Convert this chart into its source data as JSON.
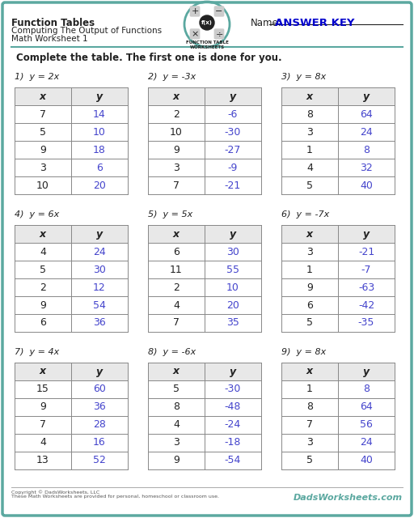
{
  "title": "Function Tables",
  "subtitle1": "Computing The Output of Functions",
  "subtitle2": "Math Worksheet 1",
  "name_label": "Name:",
  "answer_key": "ANSWER KEY",
  "instruction": "Complete the table. The first one is done for you.",
  "bg_color": "#ffffff",
  "border_color": "#5ba8a0",
  "header_bg": "#d0e8e4",
  "tables": [
    {
      "label": "1)  y = 2x",
      "x_vals": [
        7,
        5,
        9,
        3,
        10
      ],
      "y_vals": [
        "14",
        "10",
        "18",
        "6",
        "20"
      ]
    },
    {
      "label": "2)  y = -3x",
      "x_vals": [
        2,
        10,
        9,
        3,
        7
      ],
      "y_vals": [
        "-6",
        "-30",
        "-27",
        "-9",
        "-21"
      ]
    },
    {
      "label": "3)  y = 8x",
      "x_vals": [
        8,
        3,
        1,
        4,
        5
      ],
      "y_vals": [
        "64",
        "24",
        "8",
        "32",
        "40"
      ]
    },
    {
      "label": "4)  y = 6x",
      "x_vals": [
        4,
        5,
        2,
        9,
        6
      ],
      "y_vals": [
        "24",
        "30",
        "12",
        "54",
        "36"
      ]
    },
    {
      "label": "5)  y = 5x",
      "x_vals": [
        6,
        11,
        2,
        4,
        7
      ],
      "y_vals": [
        "30",
        "55",
        "10",
        "20",
        "35"
      ]
    },
    {
      "label": "6)  y = -7x",
      "x_vals": [
        3,
        1,
        9,
        6,
        5
      ],
      "y_vals": [
        "-21",
        "-7",
        "-63",
        "-42",
        "-35"
      ]
    },
    {
      "label": "7)  y = 4x",
      "x_vals": [
        15,
        9,
        7,
        4,
        13
      ],
      "y_vals": [
        "60",
        "36",
        "28",
        "16",
        "52"
      ]
    },
    {
      "label": "8)  y = -6x",
      "x_vals": [
        5,
        8,
        4,
        3,
        9
      ],
      "y_vals": [
        "-30",
        "-48",
        "-24",
        "-18",
        "-54"
      ]
    },
    {
      "label": "9)  y = 8x",
      "x_vals": [
        1,
        8,
        7,
        3,
        5
      ],
      "y_vals": [
        "8",
        "64",
        "56",
        "24",
        "40"
      ]
    }
  ],
  "footer_left": "Copyright © DadsWorksheets, LLC\nThese Math Worksheets are provided for personal, homeschool or classroom use.",
  "footer_right": "DadsWorksheets.com",
  "table_border": "#888888",
  "cell_bg_header": "#e8e8e8",
  "x_color": "#222222",
  "y_color": "#4444cc",
  "label_color": "#222222"
}
